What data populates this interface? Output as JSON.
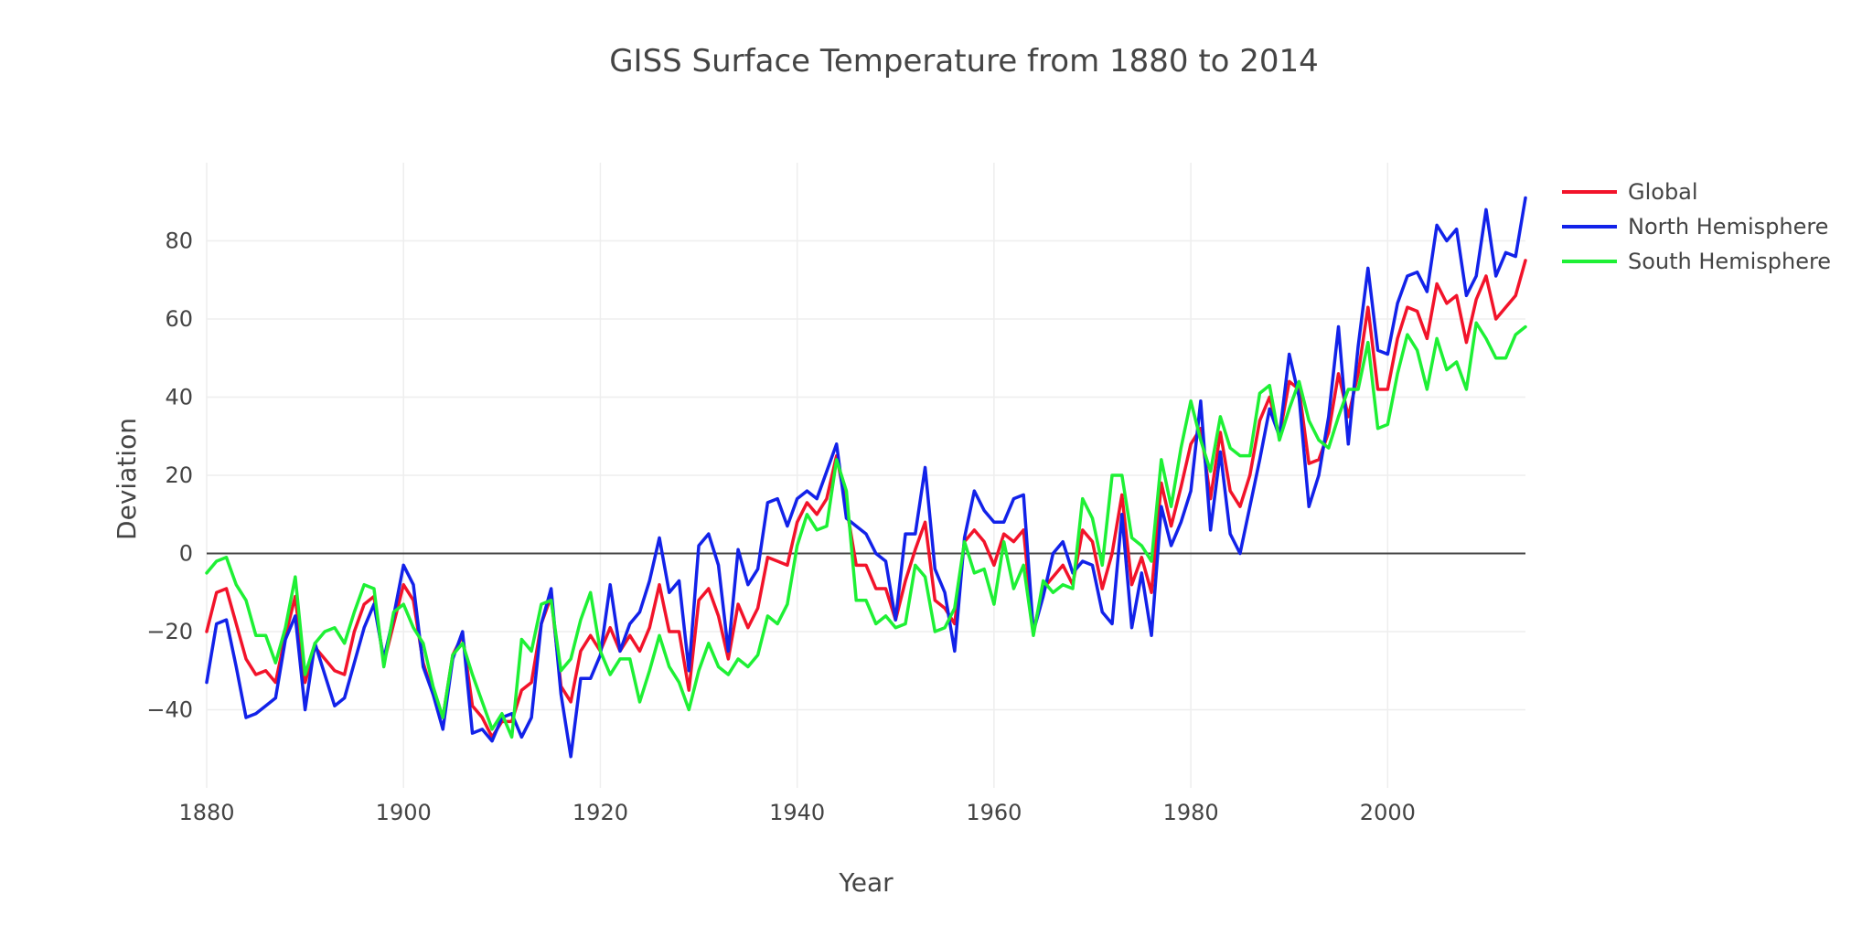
{
  "chart_data": {
    "type": "line",
    "title": "GISS Surface Temperature from 1880 to 2014",
    "xlabel": "Year",
    "ylabel": "Deviation",
    "xlim": [
      1880,
      2014
    ],
    "ylim": [
      -60,
      100
    ],
    "xticks": [
      1880,
      1900,
      1920,
      1940,
      1960,
      1980,
      2000
    ],
    "yticks": [
      -40,
      -20,
      0,
      20,
      40,
      60,
      80
    ],
    "grid": true,
    "legend_position": "top-right",
    "x_start": 1880,
    "series": [
      {
        "name": "Global",
        "color": "#f2132a",
        "values": [
          -20,
          -10,
          -9,
          -18,
          -27,
          -31,
          -30,
          -33,
          -21,
          -11,
          -33,
          -24,
          -27,
          -30,
          -31,
          -20,
          -13,
          -11,
          -28,
          -18,
          -8,
          -12,
          -28,
          -36,
          -42,
          -26,
          -21,
          -39,
          -42,
          -47,
          -43,
          -43,
          -35,
          -33,
          -18,
          -11,
          -34,
          -38,
          -25,
          -21,
          -25,
          -19,
          -25,
          -21,
          -25,
          -19,
          -8,
          -20,
          -20,
          -35,
          -12,
          -9,
          -16,
          -27,
          -13,
          -19,
          -14,
          -1,
          -2,
          -3,
          8,
          13,
          10,
          14,
          25,
          12,
          -3,
          -3,
          -9,
          -9,
          -17,
          -7,
          1,
          8,
          -12,
          -14,
          -18,
          3,
          6,
          3,
          -3,
          5,
          3,
          6,
          -20,
          -9,
          -6,
          -3,
          -8,
          6,
          3,
          -9,
          0,
          15,
          -8,
          -1,
          -10,
          18,
          7,
          17,
          28,
          32,
          14,
          31,
          16,
          12,
          20,
          34,
          40,
          30,
          44,
          42,
          23,
          24,
          31,
          46,
          35,
          46,
          63,
          42,
          42,
          55,
          63,
          62,
          55,
          69,
          64,
          66,
          54,
          65,
          71,
          60,
          63,
          66,
          75
        ]
      },
      {
        "name": "North Hemisphere",
        "color": "#1222e9",
        "values": [
          -33,
          -18,
          -17,
          -29,
          -42,
          -41,
          -39,
          -37,
          -22,
          -16,
          -40,
          -23,
          -31,
          -39,
          -37,
          -28,
          -19,
          -13,
          -27,
          -16,
          -3,
          -8,
          -29,
          -36,
          -45,
          -27,
          -20,
          -46,
          -45,
          -48,
          -42,
          -41,
          -47,
          -42,
          -18,
          -9,
          -36,
          -52,
          -32,
          -32,
          -26,
          -8,
          -25,
          -18,
          -15,
          -7,
          4,
          -10,
          -7,
          -30,
          2,
          5,
          -3,
          -25,
          1,
          -8,
          -4,
          13,
          14,
          7,
          14,
          16,
          14,
          21,
          28,
          9,
          7,
          5,
          0,
          -2,
          -17,
          5,
          5,
          22,
          -4,
          -10,
          -25,
          4,
          16,
          11,
          8,
          8,
          14,
          15,
          -20,
          -11,
          0,
          3,
          -5,
          -2,
          -3,
          -15,
          -18,
          10,
          -19,
          -5,
          -21,
          12,
          2,
          8,
          16,
          39,
          6,
          26,
          5,
          0,
          12,
          24,
          37,
          30,
          51,
          40,
          12,
          20,
          35,
          58,
          28,
          53,
          73,
          52,
          51,
          64,
          71,
          72,
          67,
          84,
          80,
          83,
          66,
          71,
          88,
          71,
          77,
          76,
          91
        ]
      },
      {
        "name": "South Hemisphere",
        "color": "#1ef035",
        "values": [
          -5,
          -2,
          -1,
          -8,
          -12,
          -21,
          -21,
          -28,
          -19,
          -6,
          -31,
          -23,
          -20,
          -19,
          -23,
          -15,
          -8,
          -9,
          -29,
          -15,
          -13,
          -19,
          -23,
          -34,
          -42,
          -26,
          -23,
          -31,
          -38,
          -45,
          -41,
          -47,
          -22,
          -25,
          -13,
          -12,
          -30,
          -27,
          -17,
          -10,
          -25,
          -31,
          -27,
          -27,
          -38,
          -30,
          -21,
          -29,
          -33,
          -40,
          -30,
          -23,
          -29,
          -31,
          -27,
          -29,
          -26,
          -16,
          -18,
          -13,
          2,
          10,
          6,
          7,
          24,
          16,
          -12,
          -12,
          -18,
          -16,
          -19,
          -18,
          -3,
          -6,
          -20,
          -19,
          -14,
          3,
          -5,
          -4,
          -13,
          3,
          -9,
          -3,
          -21,
          -7,
          -10,
          -8,
          -9,
          14,
          9,
          -3,
          20,
          20,
          4,
          2,
          -2,
          24,
          12,
          27,
          39,
          29,
          21,
          35,
          27,
          25,
          25,
          41,
          43,
          29,
          37,
          44,
          34,
          29,
          27,
          35,
          42,
          42,
          54,
          32,
          33,
          46,
          56,
          52,
          42,
          55,
          47,
          49,
          42,
          59,
          55,
          50,
          50,
          56,
          58
        ]
      }
    ]
  }
}
